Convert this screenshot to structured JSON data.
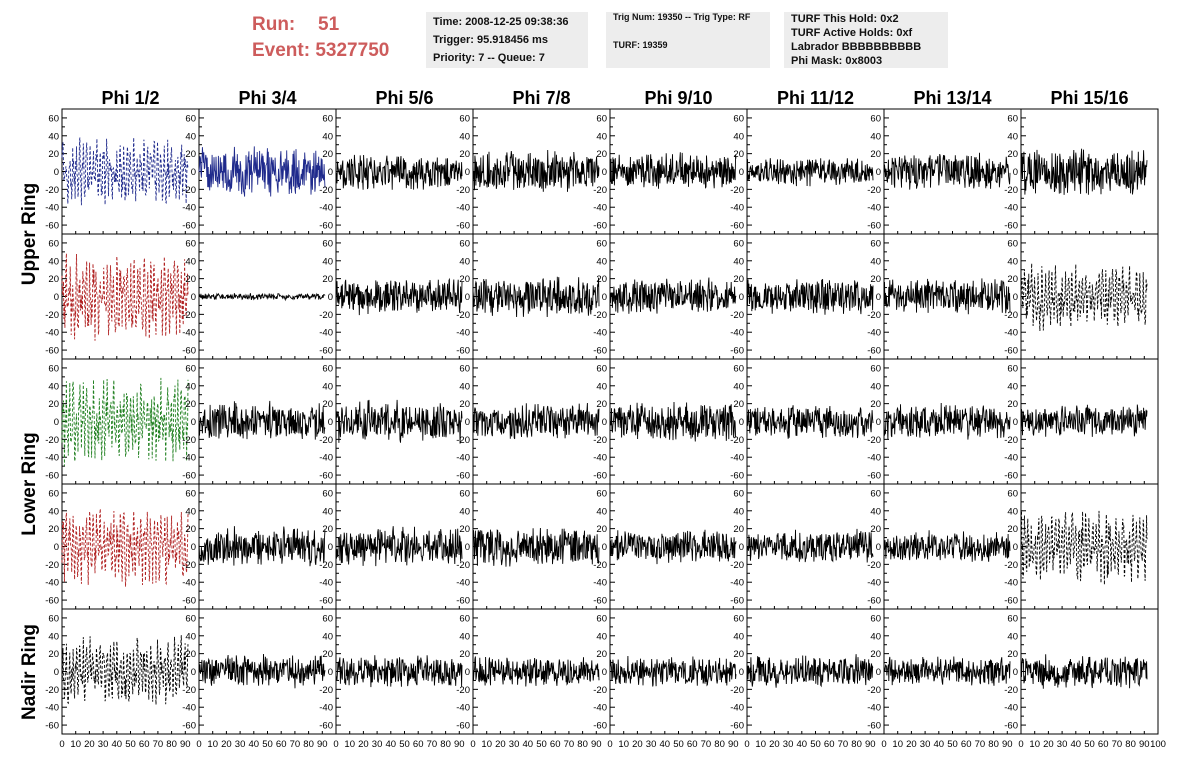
{
  "header": {
    "run_label": "Run:",
    "run_value": "51",
    "event_label": "Event:",
    "event_value": "5327750",
    "info1": [
      "Time: 2008-12-25 09:38:36",
      "Trigger: 95.918456 ms",
      "Priority: 7 -- Queue: 7"
    ],
    "info2": [
      "Trig Num: 19350 -- Trig Type: RF",
      "TURF: 19359"
    ],
    "info3": [
      "TURF This Hold: 0x2",
      "TURF Active Holds: 0xf",
      "Labrador BBBBBBBBBB",
      "Phi Mask: 0x8003"
    ]
  },
  "chart_data": {
    "type": "line",
    "columns": [
      "Phi 1/2",
      "Phi 3/4",
      "Phi 5/6",
      "Phi 7/8",
      "Phi 9/10",
      "Phi 11/12",
      "Phi 13/14",
      "Phi 15/16"
    ],
    "ring_labels": [
      {
        "text": "Upper Ring",
        "rows": [
          0,
          1
        ]
      },
      {
        "text": "Lower Ring",
        "rows": [
          2,
          3
        ]
      },
      {
        "text": "Nadir Ring",
        "rows": [
          4
        ]
      }
    ],
    "xlim": [
      0,
      100
    ],
    "ylim": [
      -70,
      70
    ],
    "x_ticks": [
      "0",
      "10",
      "20",
      "30",
      "40",
      "50",
      "60",
      "70",
      "80",
      "90",
      "100"
    ],
    "y_ticks": [
      -60,
      -40,
      -20,
      0,
      20,
      40,
      60
    ],
    "trace_extent": [
      0,
      92
    ],
    "grid": false,
    "colors": {
      "black": "#000000",
      "blue": "#1f2a8c",
      "red": "#b02020",
      "green": "#208020"
    },
    "panels": [
      [
        {
          "color": "blue",
          "style": "dashed",
          "amp": 33
        },
        {
          "color": "blue",
          "style": "solid",
          "amp": 30
        },
        {
          "color": "black",
          "style": "solid",
          "amp": 22
        },
        {
          "color": "black",
          "style": "solid",
          "amp": 25
        },
        {
          "color": "black",
          "style": "solid",
          "amp": 22
        },
        {
          "color": "black",
          "style": "solid",
          "amp": 18
        },
        {
          "color": "black",
          "style": "solid",
          "amp": 22
        },
        {
          "color": "black",
          "style": "solid",
          "amp": 28
        }
      ],
      [
        {
          "color": "red",
          "style": "dashed",
          "amp": 42
        },
        {
          "color": "black",
          "style": "solid",
          "amp": 4
        },
        {
          "color": "black",
          "style": "solid",
          "amp": 22
        },
        {
          "color": "black",
          "style": "solid",
          "amp": 25
        },
        {
          "color": "black",
          "style": "solid",
          "amp": 22
        },
        {
          "color": "black",
          "style": "solid",
          "amp": 22
        },
        {
          "color": "black",
          "style": "solid",
          "amp": 22
        },
        {
          "color": "black",
          "style": "dashed",
          "amp": 33
        }
      ],
      [
        {
          "color": "green",
          "style": "dashed",
          "amp": 42
        },
        {
          "color": "black",
          "style": "solid",
          "amp": 24
        },
        {
          "color": "black",
          "style": "solid",
          "amp": 25
        },
        {
          "color": "black",
          "style": "solid",
          "amp": 22
        },
        {
          "color": "black",
          "style": "solid",
          "amp": 24
        },
        {
          "color": "black",
          "style": "solid",
          "amp": 20
        },
        {
          "color": "black",
          "style": "solid",
          "amp": 22
        },
        {
          "color": "black",
          "style": "solid",
          "amp": 20
        }
      ],
      [
        {
          "color": "red",
          "style": "dashed",
          "amp": 38
        },
        {
          "color": "black",
          "style": "solid",
          "amp": 24
        },
        {
          "color": "black",
          "style": "solid",
          "amp": 24
        },
        {
          "color": "black",
          "style": "solid",
          "amp": 24
        },
        {
          "color": "black",
          "style": "solid",
          "amp": 20
        },
        {
          "color": "black",
          "style": "solid",
          "amp": 20
        },
        {
          "color": "black",
          "style": "solid",
          "amp": 20
        },
        {
          "color": "black",
          "style": "dashed",
          "amp": 36
        }
      ],
      [
        {
          "color": "black",
          "style": "dashed",
          "amp": 34
        },
        {
          "color": "black",
          "style": "solid",
          "amp": 20
        },
        {
          "color": "black",
          "style": "solid",
          "amp": 20
        },
        {
          "color": "black",
          "style": "solid",
          "amp": 20
        },
        {
          "color": "black",
          "style": "solid",
          "amp": 18
        },
        {
          "color": "black",
          "style": "solid",
          "amp": 20
        },
        {
          "color": "black",
          "style": "solid",
          "amp": 18
        },
        {
          "color": "black",
          "style": "solid",
          "amp": 20
        }
      ]
    ]
  }
}
